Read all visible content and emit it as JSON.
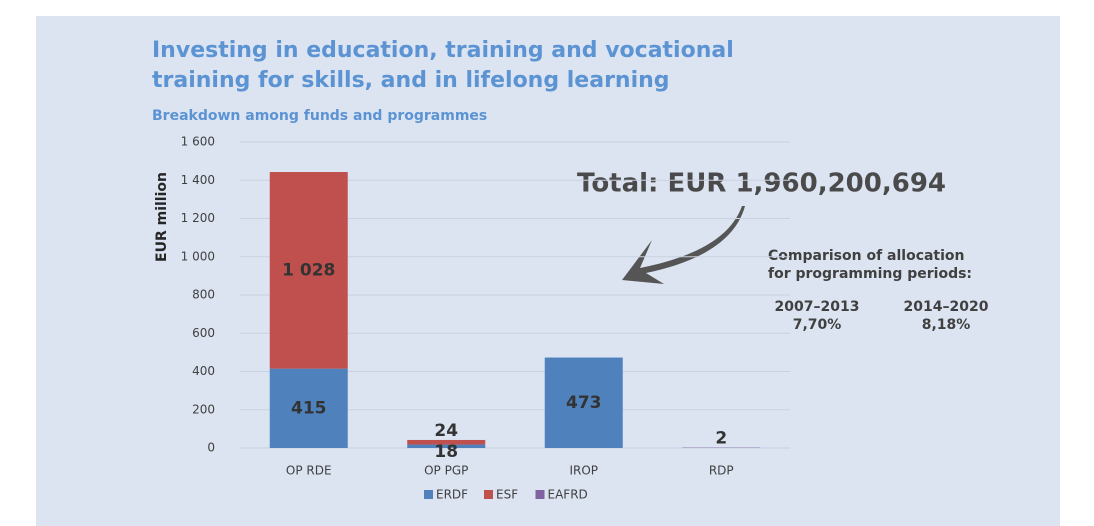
{
  "chart_data": {
    "type": "stacked-bar",
    "title": "Investing in education, training and vocational training for skills, and in lifelong learning",
    "subtitle": "Breakdown among funds and programmes",
    "y_label": "EUR million",
    "categories": [
      "OP RDE",
      "OP PGP",
      "IROP",
      "RDP"
    ],
    "series": [
      {
        "name": "ERDF",
        "color": "#4f81bd",
        "values": [
          415,
          18,
          473,
          null
        ],
        "value_labels": [
          "415",
          "18",
          "473",
          null
        ]
      },
      {
        "name": "ESF",
        "color": "#c0504d",
        "values": [
          1028,
          24,
          null,
          null
        ],
        "value_labels": [
          "1 028",
          "24",
          null,
          null
        ]
      },
      {
        "name": "EAFRD",
        "color": "#8064a2",
        "values": [
          null,
          null,
          null,
          2
        ],
        "value_labels": [
          null,
          null,
          null,
          "2"
        ]
      }
    ],
    "ylim": [
      0,
      1600
    ],
    "yticks": [
      0,
      200,
      400,
      600,
      800,
      {
        "value": 1000,
        "label": "1 000"
      },
      {
        "value": 1200,
        "label": "1 200"
      },
      {
        "value": 1400,
        "label": "1 400"
      },
      {
        "value": 1600,
        "label": "1 600"
      }
    ],
    "grid": true,
    "legend": "bottom",
    "total": "Total: EUR 1,960,200,694",
    "comparison": {
      "heading": [
        "Comparison of allocation",
        "for programming periods:"
      ],
      "periods": [
        {
          "period": "2007–2013",
          "share": "7,70%"
        },
        {
          "period": "2014–2020",
          "share": "8,18%"
        }
      ]
    }
  }
}
